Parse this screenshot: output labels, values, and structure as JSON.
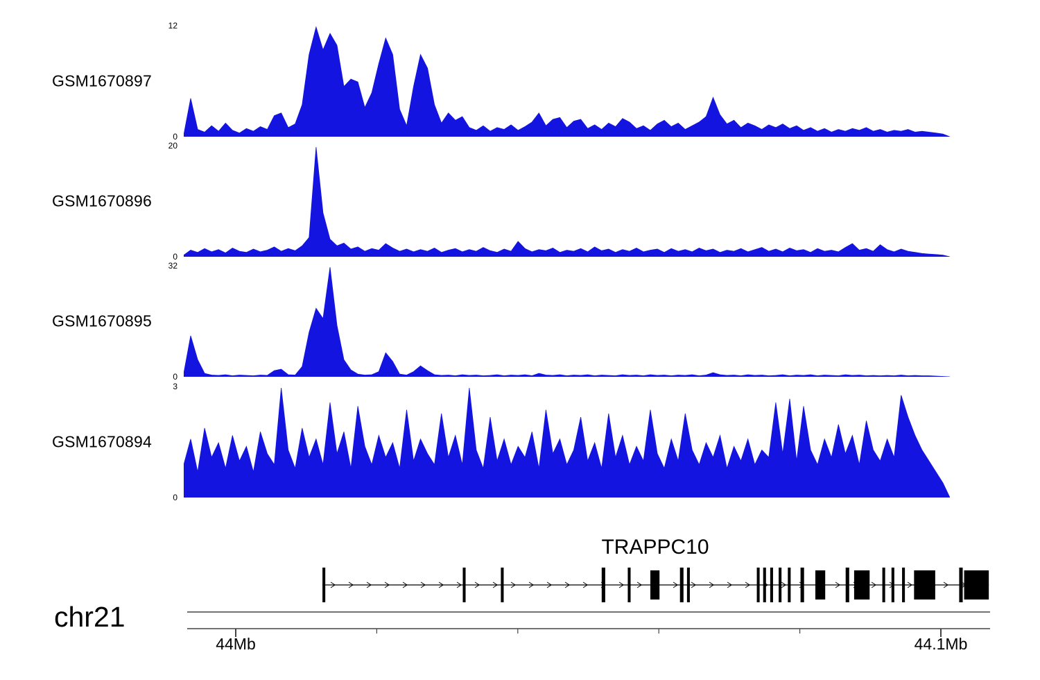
{
  "chart_data": {
    "type": "area",
    "description": "Genome browser coverage tracks over chr21 44Mb-44.1Mb with TRAPPC10 gene model",
    "signal_color": "#1414e0",
    "x_axis": {
      "chrom": "chr21",
      "start_mb": 44.0,
      "end_mb": 44.1
    },
    "tracks": [
      {
        "label": "GSM1670897",
        "ymin": 0,
        "ymax": 12,
        "values": [
          0.2,
          4.2,
          0.8,
          0.5,
          1.2,
          0.6,
          1.5,
          0.7,
          0.4,
          0.9,
          0.6,
          1.1,
          0.8,
          2.3,
          2.6,
          1.0,
          1.4,
          3.5,
          9.0,
          12,
          9.5,
          11.3,
          10.0,
          5.5,
          6.3,
          6.0,
          3.2,
          4.8,
          8.0,
          10.8,
          9.0,
          3.0,
          1.2,
          5.5,
          9.0,
          7.5,
          3.5,
          1.5,
          2.6,
          1.8,
          2.2,
          1.0,
          0.7,
          1.2,
          0.6,
          1.0,
          0.8,
          1.3,
          0.7,
          1.1,
          1.6,
          2.6,
          1.2,
          1.9,
          2.1,
          1.0,
          1.7,
          1.9,
          0.9,
          1.3,
          0.8,
          1.5,
          1.1,
          2.0,
          1.6,
          0.9,
          1.2,
          0.7,
          1.4,
          1.8,
          1.1,
          1.5,
          0.8,
          1.2,
          1.6,
          2.2,
          4.3,
          2.4,
          1.4,
          1.8,
          1.0,
          1.5,
          1.2,
          0.8,
          1.3,
          1.0,
          1.4,
          0.9,
          1.2,
          0.7,
          1.0,
          0.6,
          0.9,
          0.5,
          0.8,
          0.6,
          0.9,
          0.7,
          1.0,
          0.6,
          0.8,
          0.5,
          0.7,
          0.6,
          0.8,
          0.5,
          0.6,
          0.5,
          0.4,
          0.3,
          0
        ]
      },
      {
        "label": "GSM1670896",
        "ymin": 0,
        "ymax": 20,
        "values": [
          0.3,
          1.2,
          0.8,
          1.5,
          0.9,
          1.3,
          0.7,
          1.6,
          1.0,
          0.8,
          1.4,
          0.9,
          1.2,
          1.8,
          1.0,
          1.5,
          1.1,
          2.0,
          3.5,
          20,
          8.0,
          3.2,
          2.0,
          2.5,
          1.4,
          1.8,
          1.0,
          1.5,
          1.2,
          2.4,
          1.6,
          1.0,
          1.4,
          0.9,
          1.3,
          1.0,
          1.6,
          0.8,
          1.2,
          1.5,
          0.9,
          1.3,
          1.0,
          1.7,
          1.1,
          0.8,
          1.4,
          1.0,
          2.8,
          1.5,
          0.9,
          1.3,
          1.1,
          1.6,
          0.8,
          1.2,
          1.0,
          1.5,
          0.9,
          1.8,
          1.1,
          1.4,
          0.8,
          1.3,
          1.0,
          1.6,
          0.9,
          1.2,
          1.4,
          0.8,
          1.5,
          1.0,
          1.3,
          0.9,
          1.6,
          1.1,
          1.4,
          0.8,
          1.2,
          1.0,
          1.5,
          0.9,
          1.3,
          1.7,
          1.0,
          1.4,
          0.9,
          1.6,
          1.1,
          1.3,
          0.8,
          1.5,
          1.0,
          1.2,
          0.9,
          1.7,
          2.4,
          1.2,
          1.5,
          1.0,
          2.2,
          1.3,
          0.9,
          1.4,
          1.0,
          0.8,
          0.6,
          0.5,
          0.4,
          0.3,
          0
        ]
      },
      {
        "label": "GSM1670895",
        "ymin": 0,
        "ymax": 32,
        "values": [
          1.0,
          12,
          5.0,
          1.0,
          0.5,
          0.4,
          0.6,
          0.3,
          0.5,
          0.4,
          0.3,
          0.5,
          0.4,
          1.8,
          2.2,
          0.6,
          0.5,
          3.0,
          13,
          20,
          17,
          32,
          15,
          5.0,
          2.0,
          0.8,
          0.5,
          0.6,
          1.5,
          7.0,
          4.5,
          0.8,
          0.5,
          1.5,
          3.2,
          1.8,
          0.6,
          0.4,
          0.5,
          0.3,
          0.6,
          0.4,
          0.5,
          0.3,
          0.4,
          0.6,
          0.3,
          0.5,
          0.4,
          0.6,
          0.3,
          1.0,
          0.5,
          0.4,
          0.6,
          0.3,
          0.5,
          0.4,
          0.6,
          0.3,
          0.5,
          0.4,
          0.3,
          0.6,
          0.4,
          0.5,
          0.3,
          0.6,
          0.4,
          0.5,
          0.3,
          0.5,
          0.4,
          0.6,
          0.3,
          0.5,
          1.2,
          0.6,
          0.4,
          0.5,
          0.3,
          0.6,
          0.4,
          0.5,
          0.3,
          0.4,
          0.6,
          0.3,
          0.5,
          0.4,
          0.6,
          0.3,
          0.5,
          0.4,
          0.3,
          0.6,
          0.4,
          0.5,
          0.3,
          0.4,
          0.3,
          0.4,
          0.3,
          0.5,
          0.3,
          0.4,
          0.3,
          0.3,
          0.2,
          0.1,
          0
        ]
      },
      {
        "label": "GSM1670894",
        "ymin": 0,
        "ymax": 3,
        "values": [
          0.9,
          1.6,
          0.7,
          1.9,
          1.1,
          1.5,
          0.8,
          1.7,
          1.0,
          1.4,
          0.7,
          1.8,
          1.2,
          0.9,
          3.0,
          1.3,
          0.8,
          1.9,
          1.1,
          1.6,
          0.9,
          2.6,
          1.2,
          1.8,
          0.8,
          2.5,
          1.4,
          0.9,
          1.7,
          1.1,
          1.5,
          0.8,
          2.4,
          1.0,
          1.6,
          1.2,
          0.9,
          2.3,
          1.1,
          1.7,
          0.9,
          3.0,
          1.3,
          0.8,
          2.2,
          1.0,
          1.6,
          0.9,
          1.4,
          1.1,
          1.8,
          0.8,
          2.4,
          1.2,
          1.6,
          0.9,
          1.3,
          2.2,
          1.0,
          1.5,
          0.8,
          2.3,
          1.1,
          1.7,
          0.9,
          1.4,
          1.0,
          2.4,
          1.2,
          0.8,
          1.6,
          1.0,
          2.3,
          1.3,
          0.9,
          1.5,
          1.1,
          1.7,
          0.8,
          1.4,
          1.0,
          1.6,
          0.9,
          1.3,
          1.1,
          2.6,
          1.2,
          2.7,
          1.0,
          2.5,
          1.3,
          0.9,
          1.6,
          1.1,
          2.0,
          1.2,
          1.7,
          0.9,
          2.1,
          1.3,
          1.0,
          1.6,
          1.1,
          2.8,
          2.2,
          1.7,
          1.3,
          1.0,
          0.7,
          0.4,
          0
        ]
      }
    ],
    "gene_track": {
      "gene_name": "TRAPPC10",
      "strand": "+",
      "start_mb": 44.0123,
      "end_mb": 44.1068,
      "exons": [
        {
          "mb": 44.0123,
          "w": 0.0004,
          "thick": false
        },
        {
          "mb": 44.0322,
          "w": 0.0004,
          "thick": false
        },
        {
          "mb": 44.0376,
          "w": 0.0004,
          "thick": false
        },
        {
          "mb": 44.0519,
          "w": 0.0005,
          "thick": false
        },
        {
          "mb": 44.0556,
          "w": 0.0004,
          "thick": false
        },
        {
          "mb": 44.0588,
          "w": 0.0013,
          "thick": true
        },
        {
          "mb": 44.063,
          "w": 0.0005,
          "thick": false
        },
        {
          "mb": 44.064,
          "w": 0.0004,
          "thick": false
        },
        {
          "mb": 44.0739,
          "w": 0.0004,
          "thick": false
        },
        {
          "mb": 44.0748,
          "w": 0.0004,
          "thick": false
        },
        {
          "mb": 44.0758,
          "w": 0.0004,
          "thick": false
        },
        {
          "mb": 44.077,
          "w": 0.0004,
          "thick": false
        },
        {
          "mb": 44.0783,
          "w": 0.0004,
          "thick": false
        },
        {
          "mb": 44.0801,
          "w": 0.0005,
          "thick": false
        },
        {
          "mb": 44.0822,
          "w": 0.0014,
          "thick": true
        },
        {
          "mb": 44.0865,
          "w": 0.0005,
          "thick": false
        },
        {
          "mb": 44.0877,
          "w": 0.0022,
          "thick": true
        },
        {
          "mb": 44.0917,
          "w": 0.0004,
          "thick": false
        },
        {
          "mb": 44.093,
          "w": 0.0004,
          "thick": false
        },
        {
          "mb": 44.0945,
          "w": 0.0004,
          "thick": false
        },
        {
          "mb": 44.0962,
          "w": 0.003,
          "thick": true
        },
        {
          "mb": 44.1026,
          "w": 0.0005,
          "thick": false
        },
        {
          "mb": 44.1033,
          "w": 0.0035,
          "thick": true
        }
      ]
    },
    "ruler": {
      "major_ticks": [
        {
          "mb": 44.0,
          "label": "44Mb"
        },
        {
          "mb": 44.1,
          "label": "44.1Mb"
        }
      ],
      "minor_ticks_mb": [
        44.02,
        44.04,
        44.06,
        44.08
      ]
    }
  }
}
